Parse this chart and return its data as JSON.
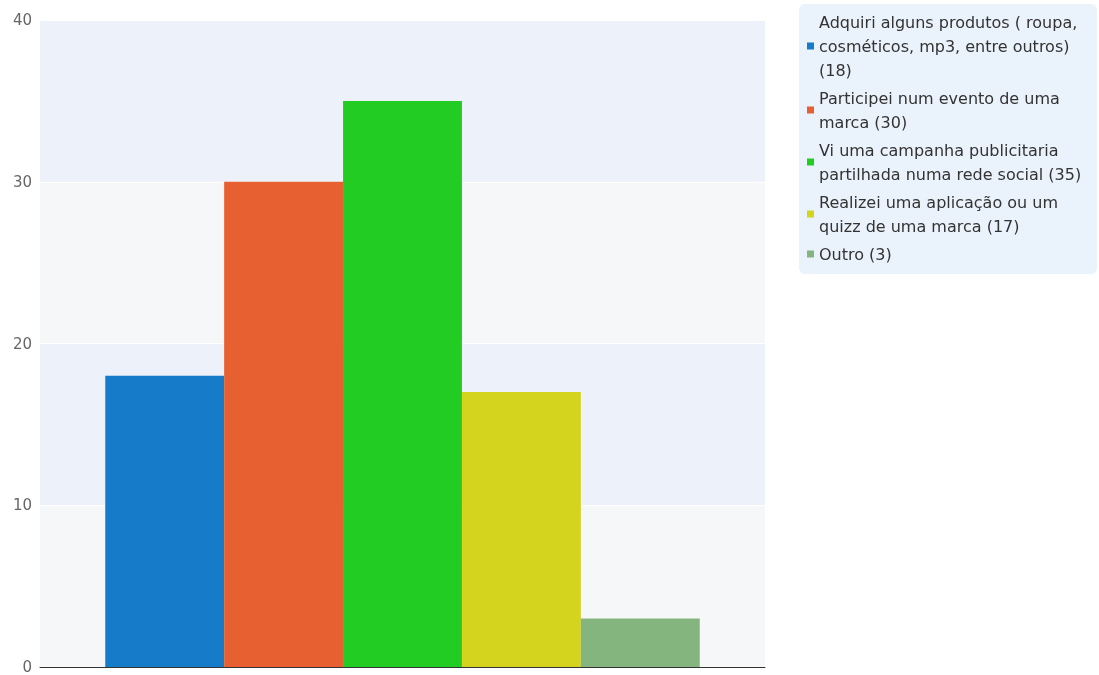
{
  "chart_data": {
    "type": "bar",
    "categories": [
      null
    ],
    "series": [
      {
        "name": "Adquiri alguns produtos ( roupa, cosméticos, mp3, entre outros) (18)",
        "color": "#167cc9",
        "values": [
          18
        ]
      },
      {
        "name": "Participei num evento de uma marca (30)",
        "color": "#e66032",
        "values": [
          30
        ]
      },
      {
        "name": "Vi uma campanha publicitaria partilhada numa rede social (35)",
        "color": "#22cc22",
        "values": [
          35
        ]
      },
      {
        "name": "Realizei uma aplicação ou um quizz de uma marca (17)",
        "color": "#d4d41e",
        "values": [
          17
        ]
      },
      {
        "name": "Outro (3)",
        "color": "#85b57f",
        "values": [
          3
        ]
      }
    ],
    "ylim": [
      0,
      40
    ],
    "yticks": [
      0,
      10,
      20,
      30,
      40
    ],
    "grid": "y",
    "legend": "top right"
  }
}
